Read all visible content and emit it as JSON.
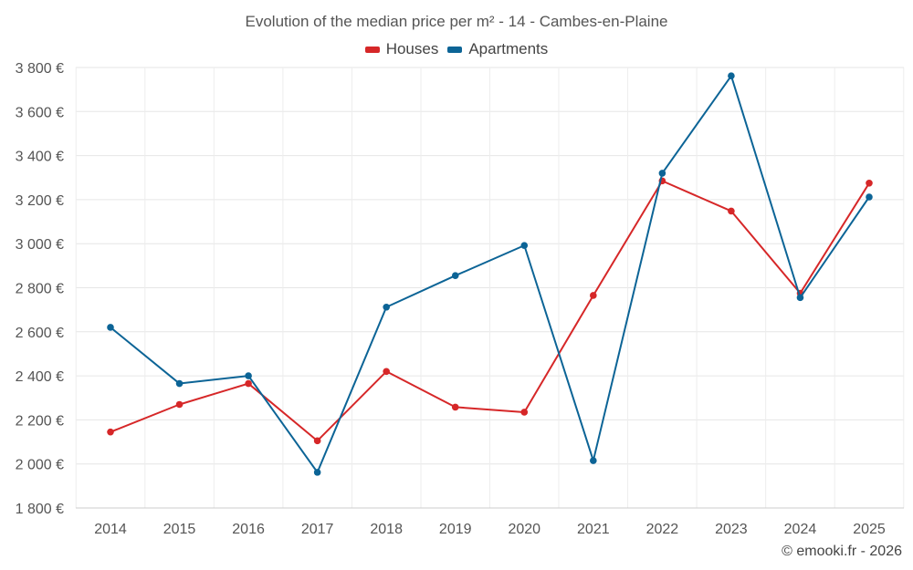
{
  "chart_data": {
    "type": "line",
    "title": "Evolution of the median price per m² - 14 - Cambes-en-Plaine",
    "categories": [
      "2014",
      "2015",
      "2016",
      "2017",
      "2018",
      "2019",
      "2020",
      "2021",
      "2022",
      "2023",
      "2024",
      "2025"
    ],
    "series": [
      {
        "name": "Houses",
        "color": "#d62728",
        "values": [
          2145,
          2270,
          2365,
          2105,
          2420,
          2258,
          2235,
          2765,
          3285,
          3148,
          2775,
          3275
        ]
      },
      {
        "name": "Apartments",
        "color": "#0c6496",
        "values": [
          2620,
          2365,
          2400,
          1962,
          2712,
          2855,
          2992,
          2015,
          3320,
          3762,
          2755,
          3212
        ]
      }
    ],
    "yticks": [
      1800,
      2000,
      2200,
      2400,
      2600,
      2800,
      3000,
      3200,
      3400,
      3600,
      3800
    ],
    "ytick_labels": [
      "1 800 €",
      "2 000 €",
      "2 200 €",
      "2 400 €",
      "2 600 €",
      "2 800 €",
      "3 000 €",
      "3 200 €",
      "3 400 €",
      "3 600 €",
      "3 800 €"
    ],
    "ylim": [
      1800,
      3800
    ],
    "xlabel": "",
    "ylabel": "",
    "grid": true,
    "legend_position": "top-center"
  },
  "credit": "© emooki.fr - 2026"
}
